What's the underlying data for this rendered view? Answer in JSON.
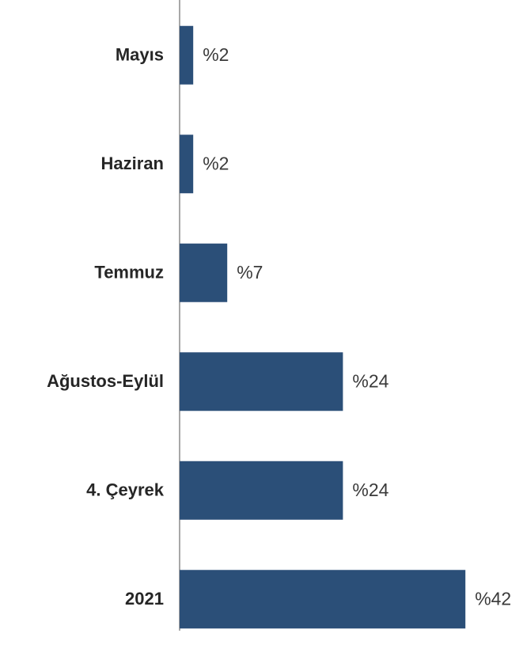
{
  "chart_data": {
    "type": "bar",
    "orientation": "horizontal",
    "categories": [
      "Mayıs",
      "Haziran",
      "Temmuz",
      "Ağustos-Eylül",
      "4. Çeyrek",
      "2021"
    ],
    "values": [
      2,
      2,
      7,
      24,
      24,
      42
    ],
    "value_labels": [
      "%2",
      "%2",
      "%7",
      "%24",
      "%24",
      "%42"
    ],
    "color": "#2b4f78",
    "xlim": [
      0,
      50
    ]
  }
}
